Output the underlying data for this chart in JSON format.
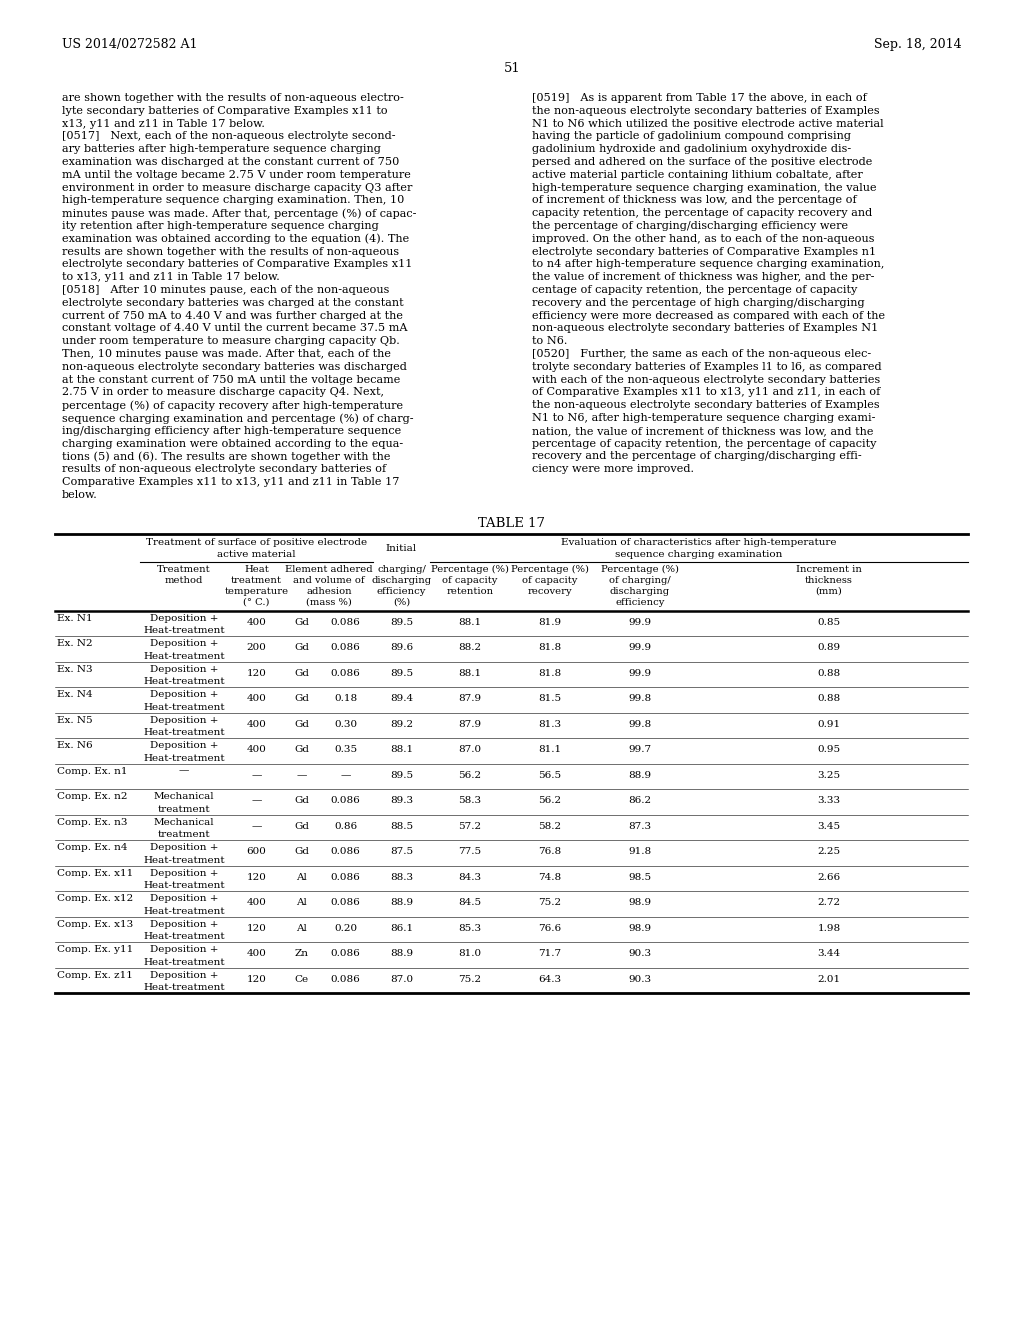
{
  "page_header_left": "US 2014/0272582 A1",
  "page_header_right": "Sep. 18, 2014",
  "page_number": "51",
  "left_col_lines": [
    "are shown together with the results of non-aqueous electro-",
    "lyte secondary batteries of Comparative Examples x11 to",
    "x13, y11 and z11 in Table 17 below.",
    "[0517]   Next, each of the non-aqueous electrolyte second-",
    "ary batteries after high-temperature sequence charging",
    "examination was discharged at the constant current of 750",
    "mA until the voltage became 2.75 V under room temperature",
    "environment in order to measure discharge capacity Q3 after",
    "high-temperature sequence charging examination. Then, 10",
    "minutes pause was made. After that, percentage (%) of capac-",
    "ity retention after high-temperature sequence charging",
    "examination was obtained according to the equation (4). The",
    "results are shown together with the results of non-aqueous",
    "electrolyte secondary batteries of Comparative Examples x11",
    "to x13, y11 and z11 in Table 17 below.",
    "[0518]   After 10 minutes pause, each of the non-aqueous",
    "electrolyte secondary batteries was charged at the constant",
    "current of 750 mA to 4.40 V and was further charged at the",
    "constant voltage of 4.40 V until the current became 37.5 mA",
    "under room temperature to measure charging capacity Qb.",
    "Then, 10 minutes pause was made. After that, each of the",
    "non-aqueous electrolyte secondary batteries was discharged",
    "at the constant current of 750 mA until the voltage became",
    "2.75 V in order to measure discharge capacity Q4. Next,",
    "percentage (%) of capacity recovery after high-temperature",
    "sequence charging examination and percentage (%) of charg-",
    "ing/discharging efficiency after high-temperature sequence",
    "charging examination were obtained according to the equa-",
    "tions (5) and (6). The results are shown together with the",
    "results of non-aqueous electrolyte secondary batteries of",
    "Comparative Examples x11 to x13, y11 and z11 in Table 17",
    "below."
  ],
  "right_col_lines": [
    "[0519]   As is apparent from Table 17 the above, in each of",
    "the non-aqueous electrolyte secondary batteries of Examples",
    "N1 to N6 which utilized the positive electrode active material",
    "having the particle of gadolinium compound comprising",
    "gadolinium hydroxide and gadolinium oxyhydroxide dis-",
    "persed and adhered on the surface of the positive electrode",
    "active material particle containing lithium cobaltate, after",
    "high-temperature sequence charging examination, the value",
    "of increment of thickness was low, and the percentage of",
    "capacity retention, the percentage of capacity recovery and",
    "the percentage of charging/discharging efficiency were",
    "improved. On the other hand, as to each of the non-aqueous",
    "electrolyte secondary batteries of Comparative Examples n1",
    "to n4 after high-temperature sequence charging examination,",
    "the value of increment of thickness was higher, and the per-",
    "centage of capacity retention, the percentage of capacity",
    "recovery and the percentage of high charging/discharging",
    "efficiency were more decreased as compared with each of the",
    "non-aqueous electrolyte secondary batteries of Examples N1",
    "to N6.",
    "[0520]   Further, the same as each of the non-aqueous elec-",
    "trolyte secondary batteries of Examples l1 to l6, as compared",
    "with each of the non-aqueous electrolyte secondary batteries",
    "of Comparative Examples x11 to x13, y11 and z11, in each of",
    "the non-aqueous electrolyte secondary batteries of Examples",
    "N1 to N6, after high-temperature sequence charging exami-",
    "nation, the value of increment of thickness was low, and the",
    "percentage of capacity retention, the percentage of capacity",
    "recovery and the percentage of charging/discharging effi-",
    "ciency were more improved."
  ],
  "table_title": "TABLE 17",
  "rows": [
    {
      "label": "Ex. N1",
      "treatment": "Deposition +",
      "treatment2": "Heat-treatment",
      "heat_temp": "400",
      "element": "Gd",
      "adhesion": "0.086",
      "initial_eff": "89.5",
      "cap_retention": "88.1",
      "cap_recovery": "81.9",
      "chg_eff": "99.9",
      "thickness": "0.85"
    },
    {
      "label": "Ex. N2",
      "treatment": "Deposition +",
      "treatment2": "Heat-treatment",
      "heat_temp": "200",
      "element": "Gd",
      "adhesion": "0.086",
      "initial_eff": "89.6",
      "cap_retention": "88.2",
      "cap_recovery": "81.8",
      "chg_eff": "99.9",
      "thickness": "0.89"
    },
    {
      "label": "Ex. N3",
      "treatment": "Deposition +",
      "treatment2": "Heat-treatment",
      "heat_temp": "120",
      "element": "Gd",
      "adhesion": "0.086",
      "initial_eff": "89.5",
      "cap_retention": "88.1",
      "cap_recovery": "81.8",
      "chg_eff": "99.9",
      "thickness": "0.88"
    },
    {
      "label": "Ex. N4",
      "treatment": "Deposition +",
      "treatment2": "Heat-treatment",
      "heat_temp": "400",
      "element": "Gd",
      "adhesion": "0.18",
      "initial_eff": "89.4",
      "cap_retention": "87.9",
      "cap_recovery": "81.5",
      "chg_eff": "99.8",
      "thickness": "0.88"
    },
    {
      "label": "Ex. N5",
      "treatment": "Deposition +",
      "treatment2": "Heat-treatment",
      "heat_temp": "400",
      "element": "Gd",
      "adhesion": "0.30",
      "initial_eff": "89.2",
      "cap_retention": "87.9",
      "cap_recovery": "81.3",
      "chg_eff": "99.8",
      "thickness": "0.91"
    },
    {
      "label": "Ex. N6",
      "treatment": "Deposition +",
      "treatment2": "Heat-treatment",
      "heat_temp": "400",
      "element": "Gd",
      "adhesion": "0.35",
      "initial_eff": "88.1",
      "cap_retention": "87.0",
      "cap_recovery": "81.1",
      "chg_eff": "99.7",
      "thickness": "0.95"
    },
    {
      "label": "Comp. Ex. n1",
      "treatment": "—",
      "treatment2": "",
      "heat_temp": "—",
      "element": "—",
      "adhesion": "—",
      "initial_eff": "89.5",
      "cap_retention": "56.2",
      "cap_recovery": "56.5",
      "chg_eff": "88.9",
      "thickness": "3.25"
    },
    {
      "label": "Comp. Ex. n2",
      "treatment": "Mechanical",
      "treatment2": "treatment",
      "heat_temp": "—",
      "element": "Gd",
      "adhesion": "0.086",
      "initial_eff": "89.3",
      "cap_retention": "58.3",
      "cap_recovery": "56.2",
      "chg_eff": "86.2",
      "thickness": "3.33"
    },
    {
      "label": "Comp. Ex. n3",
      "treatment": "Mechanical",
      "treatment2": "treatment",
      "heat_temp": "—",
      "element": "Gd",
      "adhesion": "0.86",
      "initial_eff": "88.5",
      "cap_retention": "57.2",
      "cap_recovery": "58.2",
      "chg_eff": "87.3",
      "thickness": "3.45"
    },
    {
      "label": "Comp. Ex. n4",
      "treatment": "Deposition +",
      "treatment2": "Heat-treatment",
      "heat_temp": "600",
      "element": "Gd",
      "adhesion": "0.086",
      "initial_eff": "87.5",
      "cap_retention": "77.5",
      "cap_recovery": "76.8",
      "chg_eff": "91.8",
      "thickness": "2.25"
    },
    {
      "label": "Comp. Ex. x11",
      "treatment": "Deposition +",
      "treatment2": "Heat-treatment",
      "heat_temp": "120",
      "element": "Al",
      "adhesion": "0.086",
      "initial_eff": "88.3",
      "cap_retention": "84.3",
      "cap_recovery": "74.8",
      "chg_eff": "98.5",
      "thickness": "2.66"
    },
    {
      "label": "Comp. Ex. x12",
      "treatment": "Deposition +",
      "treatment2": "Heat-treatment",
      "heat_temp": "400",
      "element": "Al",
      "adhesion": "0.086",
      "initial_eff": "88.9",
      "cap_retention": "84.5",
      "cap_recovery": "75.2",
      "chg_eff": "98.9",
      "thickness": "2.72"
    },
    {
      "label": "Comp. Ex. x13",
      "treatment": "Deposition +",
      "treatment2": "Heat-treatment",
      "heat_temp": "120",
      "element": "Al",
      "adhesion": "0.20",
      "initial_eff": "86.1",
      "cap_retention": "85.3",
      "cap_recovery": "76.6",
      "chg_eff": "98.9",
      "thickness": "1.98"
    },
    {
      "label": "Comp. Ex. y11",
      "treatment": "Deposition +",
      "treatment2": "Heat-treatment",
      "heat_temp": "400",
      "element": "Zn",
      "adhesion": "0.086",
      "initial_eff": "88.9",
      "cap_retention": "81.0",
      "cap_recovery": "71.7",
      "chg_eff": "90.3",
      "thickness": "3.44"
    },
    {
      "label": "Comp. Ex. z11",
      "treatment": "Deposition +",
      "treatment2": "Heat-treatment",
      "heat_temp": "120",
      "element": "Ce",
      "adhesion": "0.086",
      "initial_eff": "87.0",
      "cap_retention": "75.2",
      "cap_recovery": "64.3",
      "chg_eff": "90.3",
      "thickness": "2.01"
    }
  ],
  "bg_color": "#ffffff",
  "text_color": "#000000"
}
